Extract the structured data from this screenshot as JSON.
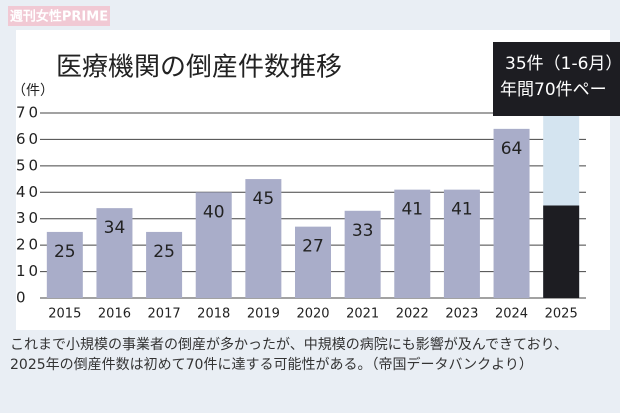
{
  "watermark": "週刊女性PRIME",
  "chart_data": {
    "type": "bar",
    "title": "医療機関の倒産件数推移",
    "y_unit": "（件）",
    "categories": [
      "2015",
      "2016",
      "2017",
      "2018",
      "2019",
      "2020",
      "2021",
      "2022",
      "2023",
      "2024",
      "2025"
    ],
    "series": [
      {
        "values": [
          25,
          34,
          25,
          40,
          45,
          27,
          33,
          41,
          41,
          64,
          35
        ],
        "value_labels": [
          "25",
          "34",
          "25",
          "40",
          "45",
          "27",
          "33",
          "41",
          "41",
          "64",
          "35件（1-6月）"
        ],
        "colors": [
          "#a9adc9",
          "#a9adc9",
          "#a9adc9",
          "#a9adc9",
          "#a9adc9",
          "#a9adc9",
          "#a9adc9",
          "#a9adc9",
          "#a9adc9",
          "#a9adc9",
          "#1d1d22"
        ]
      },
      {
        "values": [
          null,
          null,
          null,
          null,
          null,
          null,
          null,
          null,
          null,
          null,
          70
        ],
        "value_labels": [
          null,
          null,
          null,
          null,
          null,
          null,
          null,
          null,
          null,
          null,
          "年間70件ペー"
        ],
        "color": "#d4e4f0"
      }
    ],
    "ylim": [
      0,
      70
    ],
    "yticks": [
      0,
      10,
      20,
      30,
      40,
      50,
      60,
      70
    ],
    "grid": true,
    "caption": [
      "これまで小規模の事業者の倒産が多かったが、中規模の病院にも影響が及んできており、",
      "2025年の倒産件数は初めて70件に達する可能性がある。（帝国データバンクより）"
    ]
  }
}
